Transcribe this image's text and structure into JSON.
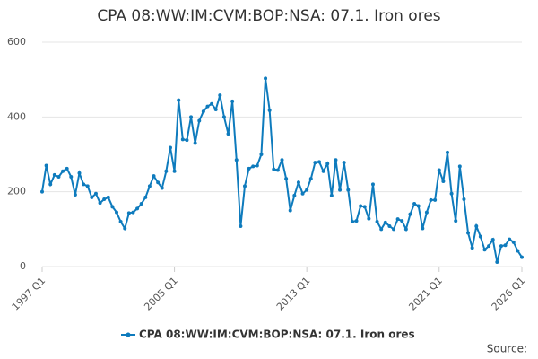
{
  "chart_data": {
    "type": "line",
    "title": "CPA 08:WW:IM:CVM:BOP:NSA: 07.1. Iron ores",
    "categories": [
      "1997 Q1",
      null,
      null,
      null,
      null,
      null,
      null,
      null,
      null,
      null,
      null,
      null,
      null,
      null,
      null,
      null,
      null,
      null,
      null,
      null,
      null,
      null,
      null,
      null,
      null,
      null,
      null,
      null,
      null,
      null,
      null,
      null,
      "2005 Q1",
      null,
      null,
      null,
      null,
      null,
      null,
      null,
      null,
      null,
      null,
      null,
      null,
      null,
      null,
      null,
      null,
      null,
      null,
      null,
      null,
      null,
      null,
      null,
      null,
      null,
      null,
      null,
      null,
      null,
      null,
      null,
      "2013 Q1",
      null,
      null,
      null,
      null,
      null,
      null,
      null,
      null,
      null,
      null,
      null,
      null,
      null,
      null,
      null,
      null,
      null,
      null,
      null,
      null,
      null,
      null,
      null,
      null,
      null,
      null,
      null,
      null,
      null,
      null,
      null,
      "2021 Q1",
      null,
      null,
      null,
      null,
      null,
      null,
      null,
      null,
      null,
      null,
      null,
      null,
      null,
      null,
      null,
      null,
      null,
      null,
      null,
      "2026 Q1"
    ],
    "series": [
      {
        "name": "CPA 08:WW:IM:CVM:BOP:NSA: 07.1. Iron ores",
        "color": "#0e7bbd",
        "values": [
          200,
          270,
          220,
          245,
          240,
          255,
          262,
          240,
          192,
          250,
          220,
          215,
          185,
          195,
          170,
          180,
          185,
          160,
          145,
          120,
          102,
          143,
          145,
          155,
          168,
          185,
          215,
          242,
          225,
          210,
          255,
          318,
          255,
          445,
          340,
          338,
          400,
          330,
          390,
          415,
          428,
          435,
          420,
          458,
          400,
          355,
          442,
          285,
          108,
          215,
          262,
          268,
          270,
          300,
          503,
          418,
          260,
          258,
          285,
          235,
          150,
          190,
          225,
          195,
          205,
          235,
          278,
          280,
          255,
          275,
          190,
          285,
          205,
          278,
          205,
          120,
          122,
          162,
          160,
          128,
          220,
          120,
          100,
          118,
          108,
          100,
          127,
          122,
          100,
          140,
          168,
          162,
          102,
          145,
          178,
          178,
          258,
          228,
          305,
          195,
          122,
          268,
          180,
          90,
          50,
          108,
          80,
          45,
          55,
          72,
          12,
          55,
          57,
          73,
          65,
          42,
          25
        ]
      }
    ],
    "ylim": [
      0,
      600
    ],
    "yticks": [
      0,
      200,
      400,
      600
    ],
    "grid": true,
    "source": "Source:"
  }
}
